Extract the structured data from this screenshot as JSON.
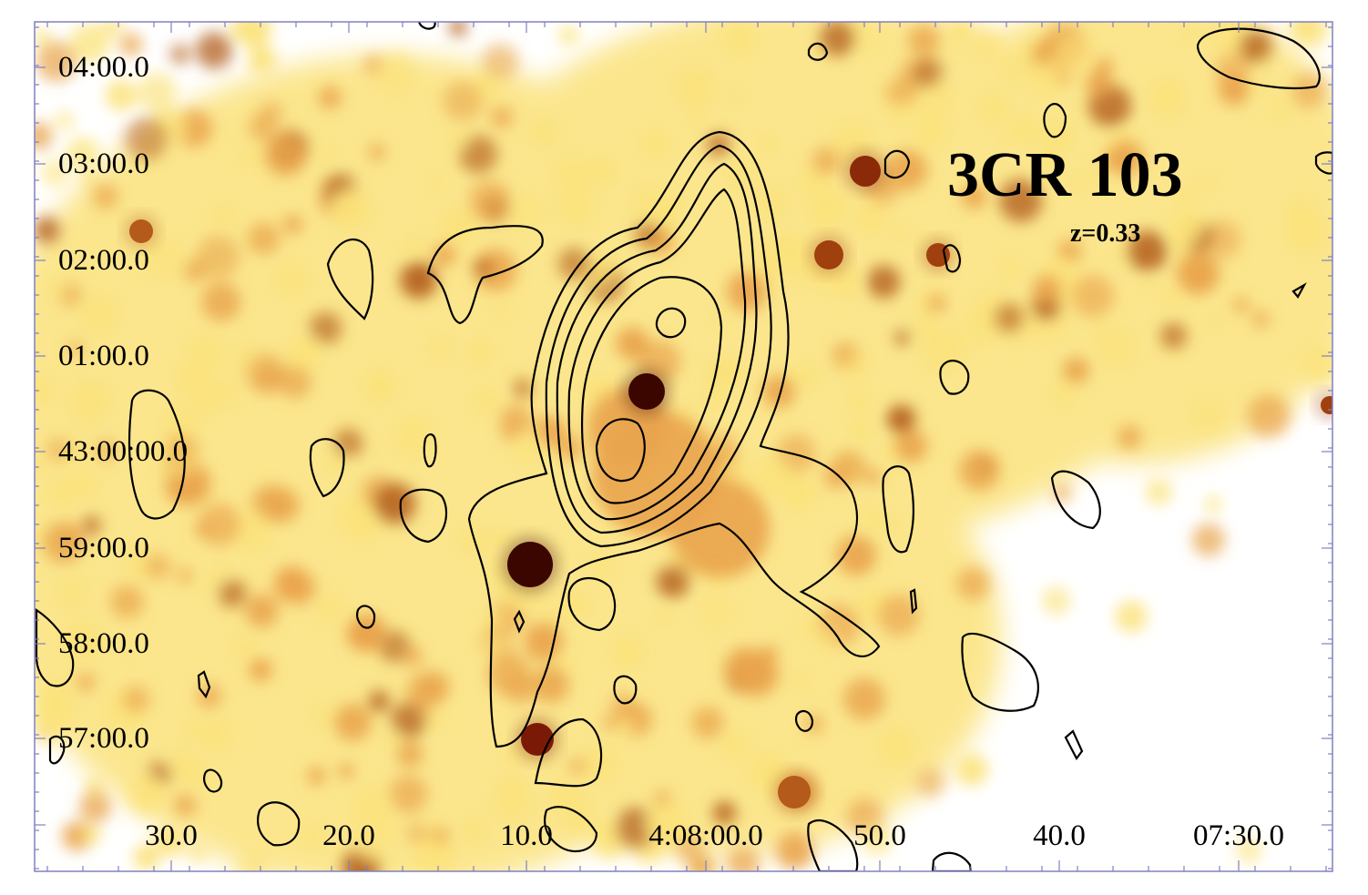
{
  "image": {
    "source_name": "3CR 103",
    "redshift": "z=0.33",
    "dec_ticks": [
      "04:00.0",
      "03:00.0",
      "02:00.0",
      "01:00.0",
      "43:00:00.0",
      "59:00.0",
      "58:00.0",
      "57:00.0"
    ],
    "ra_ticks": [
      "30.0",
      "20.0",
      "10.0",
      "4:08:00.0",
      "50.0",
      "40.0",
      "07:30.0"
    ],
    "colors": {
      "map_pale": "#fbe27a",
      "map_mid": "#e9a44c",
      "map_dark": "#b4611f",
      "point_source": "#3b0500",
      "contour": "#000000",
      "frame": "#8080c0"
    }
  }
}
